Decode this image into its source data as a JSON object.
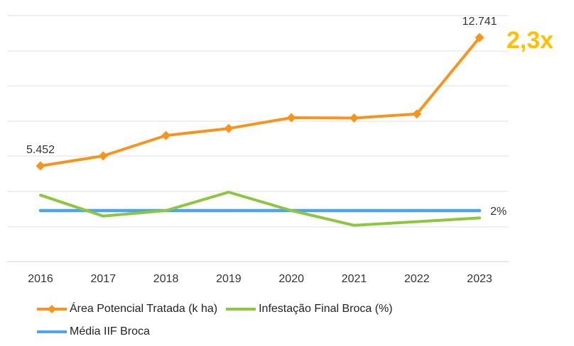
{
  "chart_data": {
    "type": "line",
    "x": [
      "2016",
      "2017",
      "2018",
      "2019",
      "2020",
      "2021",
      "2022",
      "2023"
    ],
    "series": [
      {
        "name": "Área Potencial Tratada (k ha)",
        "axis": "primary",
        "color": "#F7941D",
        "marker": "diamond",
        "values": [
          5452,
          6020,
          7180,
          7580,
          8190,
          8170,
          8400,
          12741
        ]
      },
      {
        "name": "Infestação Final Broca (%)",
        "axis": "secondary",
        "color": "#8DC63F",
        "marker": "none",
        "values": [
          2.42,
          1.85,
          2.0,
          2.5,
          2.0,
          1.6,
          1.7,
          1.8
        ]
      },
      {
        "name": "Média IIF Broca",
        "axis": "secondary",
        "color": "#4DA3F0",
        "marker": "none",
        "values": [
          2,
          2,
          2,
          2,
          2,
          2,
          2,
          2
        ]
      }
    ],
    "data_labels": [
      {
        "series": 0,
        "index": 0,
        "text": "5.452"
      },
      {
        "series": 0,
        "index": 7,
        "text": "12.741"
      },
      {
        "series": 2,
        "index": 7,
        "text": "2%"
      }
    ],
    "annotation": {
      "text": "2,3x",
      "color": "#FFC000"
    },
    "grid": true,
    "legend_position": "bottom-left"
  }
}
